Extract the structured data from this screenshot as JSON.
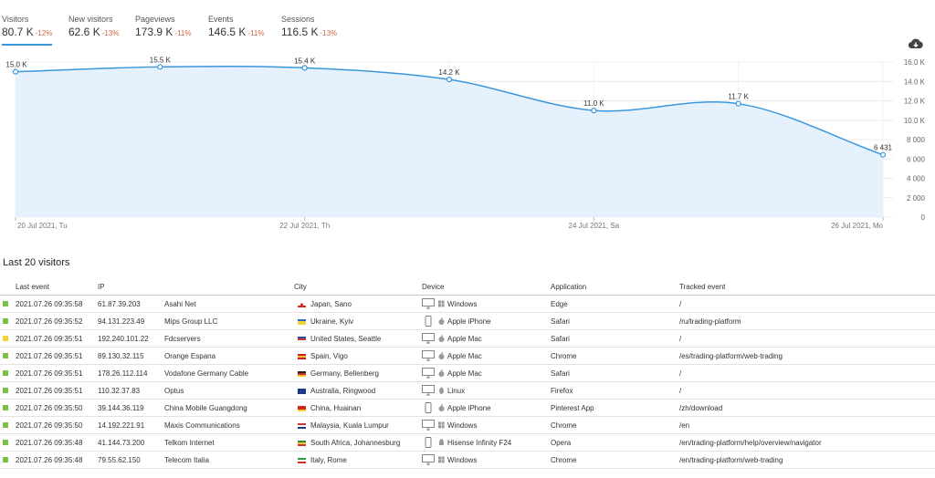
{
  "metrics": [
    {
      "label": "Visitors",
      "value": "80.7 K",
      "delta": "-12%"
    },
    {
      "label": "New visitors",
      "value": "62.6 K",
      "delta": "-13%"
    },
    {
      "label": "Pageviews",
      "value": "173.9 K",
      "delta": "-11%"
    },
    {
      "label": "Events",
      "value": "146.5 K",
      "delta": "-11%"
    },
    {
      "label": "Sessions",
      "value": "116.5 K",
      "delta": "-13%"
    }
  ],
  "download_icon": "cloud-download-icon",
  "colors": {
    "accent": "#3b97dc",
    "area": "#e5f2fd",
    "delta_negative": "#d0643e",
    "marker_green": "#7cc242",
    "marker_yellow": "#f2d33b"
  },
  "chart_data": {
    "type": "area",
    "x": [
      "20 Jul 2021",
      "21 Jul 2021",
      "22 Jul 2021",
      "23 Jul 2021",
      "24 Jul 2021",
      "25 Jul 2021",
      "26 Jul 2021"
    ],
    "values": [
      15000,
      15500,
      15400,
      14200,
      11000,
      11700,
      6431
    ],
    "point_labels": [
      "15.0 K",
      "15.5 K",
      "15.4 K",
      "14.2 K",
      "11.0 K",
      "11.7 K",
      "6 431"
    ],
    "y_ticks": [
      "16.0 K",
      "14.0 K",
      "12.0 K",
      "10.0 K",
      "8 000",
      "6 000",
      "4 000",
      "2 000",
      "0"
    ],
    "ylim": [
      0,
      16000
    ],
    "x_tick_labels": [
      {
        "index": 0,
        "label": "20 Jul 2021, Tu"
      },
      {
        "index": 2,
        "label": "22 Jul 2021, Th"
      },
      {
        "index": 4,
        "label": "24 Jul 2021, Sa"
      },
      {
        "index": 6,
        "label": "26 Jul 2021, Mo"
      }
    ],
    "grid": true
  },
  "visitors_title": "Last 20 visitors",
  "table": {
    "headers": [
      "Last event",
      "IP",
      "City",
      "Device",
      "Application",
      "Tracked event"
    ],
    "rows": [
      {
        "status": "green",
        "time": "2021.07.26 09:35:58",
        "ip": "61.87.39.203",
        "org": "Asahi Net",
        "flag": "jp",
        "city": "Japan, Sano",
        "device_icon": "desktop-icon",
        "os_icon": "windows-icon",
        "device": "Windows",
        "app": "Edge",
        "event": "/"
      },
      {
        "status": "green",
        "time": "2021.07.26 09:35:52",
        "ip": "94.131.223.49",
        "org": "Mips Group LLC",
        "flag": "ua",
        "city": "Ukraine, Kyiv",
        "device_icon": "phone-icon",
        "os_icon": "apple-icon",
        "device": "Apple iPhone",
        "app": "Safari",
        "event": "/ru/trading-platform"
      },
      {
        "status": "yellow",
        "time": "2021.07.26 09:35:51",
        "ip": "192.240.101.22",
        "org": "Fdcservers",
        "flag": "us",
        "city": "United States, Seattle",
        "device_icon": "desktop-icon",
        "os_icon": "apple-icon",
        "device": "Apple Mac",
        "app": "Safari",
        "event": "/"
      },
      {
        "status": "green",
        "time": "2021.07.26 09:35:51",
        "ip": "89.130.32.115",
        "org": "Orange Espana",
        "flag": "es",
        "city": "Spain, Vigo",
        "device_icon": "desktop-icon",
        "os_icon": "apple-icon",
        "device": "Apple Mac",
        "app": "Chrome",
        "event": "/es/trading-platform/web-trading"
      },
      {
        "status": "green",
        "time": "2021.07.26 09:35:51",
        "ip": "178.26.112.114",
        "org": "Vodafone Germany Cable",
        "flag": "de",
        "city": "Germany, Bellenberg",
        "device_icon": "desktop-icon",
        "os_icon": "apple-icon",
        "device": "Apple Mac",
        "app": "Safari",
        "event": "/"
      },
      {
        "status": "green",
        "time": "2021.07.26 09:35:51",
        "ip": "110.32.37.83",
        "org": "Optus",
        "flag": "au",
        "city": "Australia, Ringwood",
        "device_icon": "desktop-icon",
        "os_icon": "linux-icon",
        "device": "Linux",
        "app": "Firefox",
        "event": "/"
      },
      {
        "status": "green",
        "time": "2021.07.26 09:35:50",
        "ip": "39.144.36.119",
        "org": "China Mobile Guangdong",
        "flag": "cn",
        "city": "China, Huainan",
        "device_icon": "phone-icon",
        "os_icon": "apple-icon",
        "device": "Apple iPhone",
        "app": "Pinterest App",
        "event": "/zh/download"
      },
      {
        "status": "green",
        "time": "2021.07.26 09:35:50",
        "ip": "14.192.221.91",
        "org": "Maxis Communications",
        "flag": "my",
        "city": "Malaysia, Kuala Lumpur",
        "device_icon": "desktop-icon",
        "os_icon": "windows-icon",
        "device": "Windows",
        "app": "Chrome",
        "event": "/en"
      },
      {
        "status": "green",
        "time": "2021.07.26 09:35:48",
        "ip": "41.144.73.200",
        "org": "Telkom Internet",
        "flag": "za",
        "city": "South Africa, Johannesburg",
        "device_icon": "phone-icon",
        "os_icon": "android-icon",
        "device": "Hisense Infinity F24",
        "app": "Opera",
        "event": "/en/trading-platform/help/overview/navigator"
      },
      {
        "status": "green",
        "time": "2021.07.26 09:35:48",
        "ip": "79.55.62.150",
        "org": "Telecom Italia",
        "flag": "it",
        "city": "Italy, Rome",
        "device_icon": "desktop-icon",
        "os_icon": "windows-icon",
        "device": "Windows",
        "app": "Chrome",
        "event": "/en/trading-platform/web-trading"
      }
    ]
  }
}
